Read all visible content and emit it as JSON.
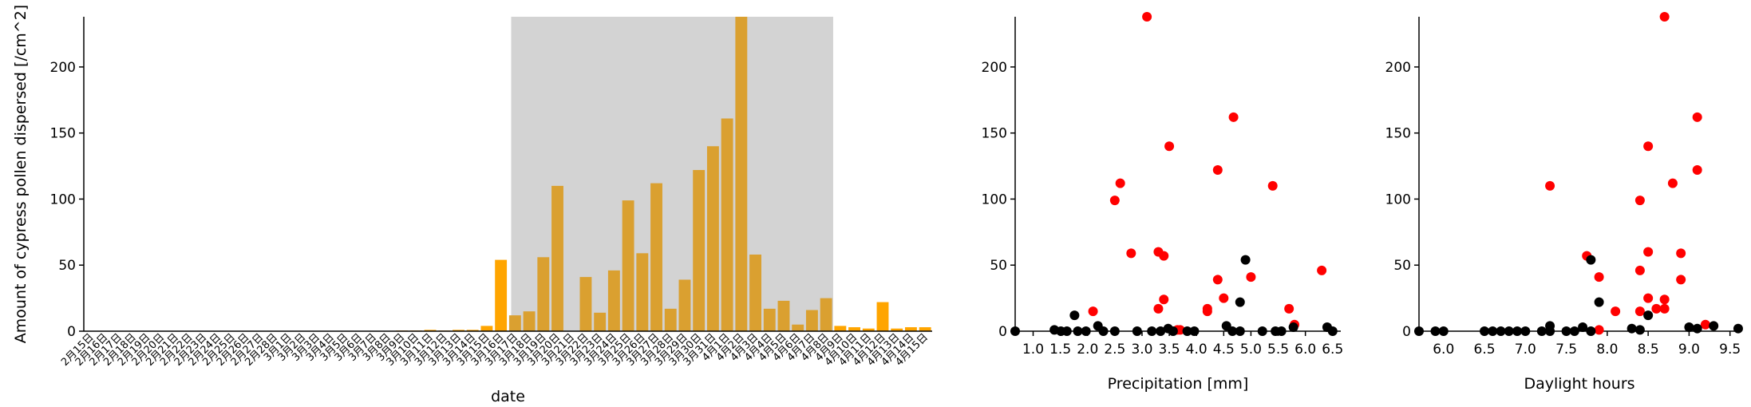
{
  "chart_data": [
    {
      "type": "bar",
      "ylabel": "Amount of cypress pollen dispersed [/cm^2]",
      "xlabel": "date",
      "categories": [
        "2月15日",
        "2月16日",
        "2月17日",
        "2月18日",
        "2月19日",
        "2月20日",
        "2月21日",
        "2月22日",
        "2月23日",
        "2月24日",
        "2月25日",
        "2月26日",
        "2月27日",
        "2月28日",
        "3月1日",
        "3月2日",
        "3月3日",
        "3月4日",
        "3月5日",
        "3月6日",
        "3月7日",
        "3月8日",
        "3月9日",
        "3月10日",
        "3月11日",
        "3月12日",
        "3月13日",
        "3月14日",
        "3月15日",
        "3月16日",
        "3月17日",
        "3月18日",
        "3月19日",
        "3月20日",
        "3月21日",
        "3月22日",
        "3月23日",
        "3月24日",
        "3月25日",
        "3月26日",
        "3月27日",
        "3月28日",
        "3月29日",
        "3月30日",
        "3月31日",
        "4月1日",
        "4月2日",
        "4月3日",
        "4月4日",
        "4月5日",
        "4月6日",
        "4月7日",
        "4月8日",
        "4月9日",
        "4月10日",
        "4月11日",
        "4月12日",
        "4月13日",
        "4月14日",
        "4月15日"
      ],
      "values": [
        0,
        0,
        0,
        0,
        0,
        0,
        0,
        0,
        0,
        0,
        0,
        0,
        0,
        0,
        0,
        0,
        0,
        0,
        0,
        0,
        0,
        0,
        0.5,
        0.5,
        1,
        0.5,
        1,
        1,
        4,
        54,
        12,
        15,
        56,
        110,
        0,
        41,
        14,
        46,
        99,
        59,
        112,
        17,
        39,
        122,
        140,
        161,
        238,
        58,
        17,
        23,
        5,
        16,
        25,
        4,
        3,
        2,
        22,
        2,
        3,
        3
      ],
      "color": "#ffa500",
      "highlight_range": [
        "3月17日",
        "4月8日"
      ],
      "highlight_color": "#d3d3d3",
      "highlight_bar_color": "#daa030",
      "ylim": [
        0,
        238
      ],
      "yticks": [
        0,
        50,
        100,
        150,
        200
      ]
    },
    {
      "type": "scatter",
      "xlabel": "Precipitation [mm]",
      "series": [
        {
          "color": "red",
          "x": [
            3.09,
            2.6,
            2.5,
            2.8,
            3.3,
            3.4,
            3.5,
            3.3,
            3.4,
            2.1,
            3.65,
            4.68,
            4.39,
            4.39,
            4.2,
            4.2,
            4.5,
            5.0,
            5.4,
            5.7,
            5.8,
            6.3,
            3.7
          ],
          "values": [
            238,
            112,
            99,
            59,
            60,
            57,
            140,
            17,
            24,
            15,
            1,
            162,
            122,
            39,
            17,
            15,
            25,
            41,
            110,
            17,
            5,
            46,
            1
          ]
        },
        {
          "color": "black",
          "x": [
            0.67,
            1.39,
            1.51,
            1.62,
            1.76,
            1.82,
            1.97,
            2.19,
            2.29,
            2.5,
            2.91,
            3.18,
            3.34,
            3.48,
            3.57,
            3.83,
            3.96,
            4.55,
            4.66,
            4.8,
            4.8,
            4.9,
            5.21,
            5.45,
            5.56,
            5.78,
            6.4,
            6.5
          ],
          "values": [
            0,
            1,
            0,
            0,
            12,
            0,
            0,
            4,
            0,
            0,
            0,
            0,
            0,
            2,
            0,
            0,
            0,
            4,
            0,
            0,
            22,
            54,
            0,
            0,
            0,
            3,
            3,
            0
          ]
        }
      ],
      "xlim": [
        0.67,
        6.65
      ],
      "xticks": [
        {
          "value": 1,
          "label": "1.0"
        },
        1.5,
        {
          "value": 2,
          "label": "2.0"
        },
        2.5,
        {
          "value": 3,
          "label": "3.0"
        },
        3.5,
        {
          "value": 4,
          "label": "4.0"
        },
        4.5,
        {
          "value": 5,
          "label": "5.0"
        },
        5.5,
        {
          "value": 6,
          "label": "6.0"
        },
        6.5
      ],
      "ylim": [
        0,
        238
      ],
      "yticks": [
        0,
        50,
        100,
        150,
        200
      ]
    },
    {
      "type": "scatter",
      "xlabel": "Daylight hours",
      "series": [
        {
          "color": "red",
          "x": [
            8.7,
            9.1,
            9.1,
            8.5,
            8.8,
            7.3,
            8.4,
            8.9,
            8.5,
            7.75,
            8.4,
            7.9,
            8.9,
            8.5,
            8.7,
            8.6,
            8.7,
            8.1,
            8.4,
            9.2,
            7.9
          ],
          "values": [
            238,
            162,
            122,
            140,
            112,
            110,
            99,
            59,
            60,
            57,
            46,
            41,
            39,
            25,
            24,
            17,
            17,
            15,
            15,
            5,
            1
          ]
        },
        {
          "color": "black",
          "x": [
            5.7,
            5.9,
            6.0,
            6.5,
            6.6,
            6.7,
            6.8,
            6.9,
            7.0,
            7.2,
            7.3,
            7.3,
            7.5,
            7.6,
            7.7,
            7.8,
            7.8,
            7.9,
            8.3,
            8.4,
            8.5,
            9.0,
            9.1,
            9.3,
            9.6
          ],
          "values": [
            0,
            0,
            0,
            0,
            0,
            0,
            0,
            0,
            0,
            0,
            4,
            0,
            0,
            0,
            3,
            0,
            54,
            22,
            2,
            1,
            12,
            3,
            2,
            4,
            2
          ]
        }
      ],
      "xlim": [
        5.7,
        9.62
      ],
      "xticks": [
        {
          "value": 6,
          "label": "6.0"
        },
        6.5,
        {
          "value": 7,
          "label": "7.0"
        },
        7.5,
        {
          "value": 8,
          "label": "8.0"
        },
        8.5,
        {
          "value": 9,
          "label": "9.0"
        },
        9.5
      ],
      "ylim": [
        0,
        238
      ],
      "yticks": [
        0,
        50,
        100,
        150,
        200
      ]
    }
  ]
}
